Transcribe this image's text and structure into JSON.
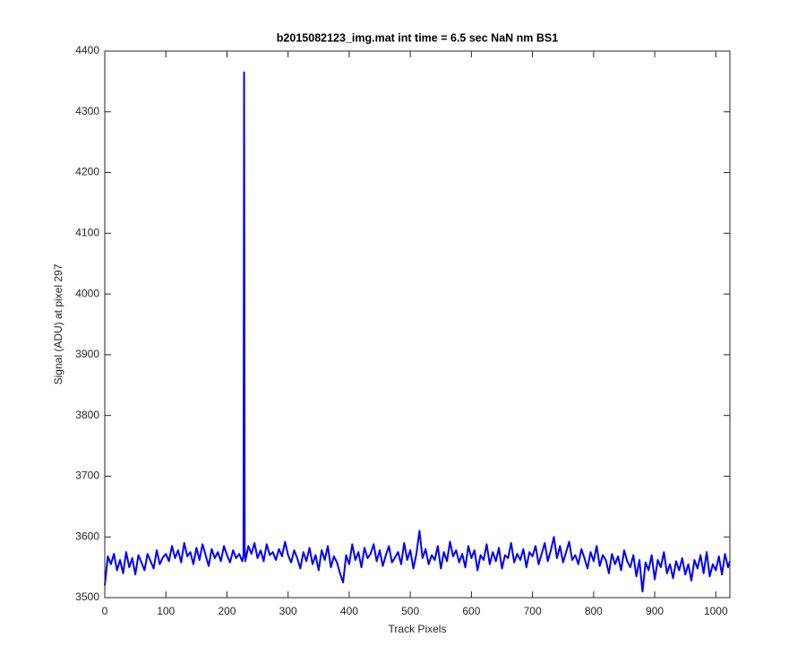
{
  "chart_data": {
    "type": "line",
    "title": "b2015082123_img.mat int time = 6.5 sec  NaN nm BS1",
    "xlabel": "Track Pixels",
    "ylabel": "Signal (ADU) at pixel 297",
    "xlim": [
      0,
      1023
    ],
    "ylim": [
      3500,
      4400
    ],
    "xticks": [
      0,
      100,
      200,
      300,
      400,
      500,
      600,
      700,
      800,
      900,
      1000
    ],
    "yticks": [
      3500,
      3600,
      3700,
      3800,
      3900,
      4000,
      4100,
      4200,
      4300,
      4400
    ],
    "grid": false,
    "x": [
      0,
      5,
      10,
      15,
      20,
      25,
      30,
      35,
      40,
      45,
      50,
      55,
      60,
      65,
      70,
      75,
      80,
      85,
      90,
      95,
      100,
      105,
      110,
      115,
      120,
      125,
      130,
      135,
      140,
      145,
      150,
      155,
      160,
      165,
      170,
      175,
      180,
      185,
      190,
      195,
      200,
      205,
      210,
      215,
      220,
      225,
      227,
      228,
      229,
      230,
      235,
      240,
      245,
      250,
      255,
      260,
      265,
      270,
      275,
      280,
      285,
      290,
      295,
      300,
      305,
      310,
      315,
      320,
      325,
      330,
      335,
      340,
      345,
      350,
      355,
      360,
      365,
      370,
      375,
      380,
      385,
      390,
      395,
      400,
      405,
      410,
      415,
      420,
      425,
      430,
      435,
      440,
      445,
      450,
      455,
      460,
      465,
      470,
      475,
      480,
      485,
      490,
      495,
      500,
      505,
      510,
      515,
      520,
      525,
      530,
      535,
      540,
      545,
      550,
      555,
      560,
      565,
      570,
      575,
      580,
      585,
      590,
      595,
      600,
      605,
      610,
      615,
      620,
      625,
      630,
      635,
      640,
      645,
      650,
      655,
      660,
      665,
      670,
      675,
      680,
      685,
      690,
      695,
      700,
      705,
      710,
      715,
      720,
      725,
      730,
      735,
      740,
      745,
      750,
      755,
      760,
      765,
      770,
      775,
      780,
      785,
      790,
      795,
      800,
      805,
      810,
      815,
      820,
      825,
      830,
      835,
      840,
      845,
      850,
      855,
      860,
      865,
      870,
      875,
      880,
      885,
      890,
      895,
      900,
      905,
      910,
      915,
      920,
      925,
      930,
      935,
      940,
      945,
      950,
      955,
      960,
      965,
      970,
      975,
      980,
      985,
      990,
      995,
      1000,
      1005,
      1010,
      1015,
      1020,
      1023
    ],
    "series": [
      {
        "name": "pixel 297",
        "color": "#0000ff",
        "values": [
          3520,
          3568,
          3555,
          3572,
          3545,
          3562,
          3540,
          3575,
          3550,
          3565,
          3538,
          3570,
          3558,
          3545,
          3572,
          3560,
          3548,
          3578,
          3555,
          3566,
          3572,
          3560,
          3585,
          3565,
          3578,
          3558,
          3590,
          3568,
          3575,
          3555,
          3582,
          3562,
          3588,
          3570,
          3552,
          3580,
          3565,
          3575,
          3560,
          3585,
          3570,
          3558,
          3578,
          3565,
          3572,
          3560,
          3570,
          4365,
          3585,
          3560,
          3585,
          3572,
          3590,
          3565,
          3578,
          3560,
          3588,
          3570,
          3575,
          3562,
          3580,
          3568,
          3592,
          3570,
          3558,
          3578,
          3565,
          3548,
          3575,
          3560,
          3582,
          3555,
          3570,
          3545,
          3578,
          3562,
          3585,
          3550,
          3568,
          3558,
          3540,
          3525,
          3570,
          3555,
          3588,
          3562,
          3575,
          3550,
          3582,
          3565,
          3572,
          3588,
          3560,
          3578,
          3552,
          3570,
          3585,
          3558,
          3566,
          3575,
          3555,
          3590,
          3562,
          3578,
          3548,
          3572,
          3610,
          3565,
          3580,
          3555,
          3570,
          3562,
          3585,
          3548,
          3575,
          3560,
          3592,
          3568,
          3578,
          3558,
          3572,
          3550,
          3585,
          3565,
          3578,
          3545,
          3570,
          3562,
          3588,
          3555,
          3575,
          3560,
          3582,
          3548,
          3570,
          3565,
          3590,
          3558,
          3572,
          3562,
          3580,
          3550,
          3575,
          3568,
          3585,
          3555,
          3572,
          3590,
          3560,
          3578,
          3600,
          3565,
          3585,
          3558,
          3575,
          3592,
          3562,
          3570,
          3555,
          3580,
          3565,
          3548,
          3575,
          3560,
          3585,
          3552,
          3570,
          3562,
          3540,
          3572,
          3555,
          3568,
          3545,
          3578,
          3560,
          3550,
          3570,
          3535,
          3562,
          3510,
          3558,
          3545,
          3570,
          3530,
          3562,
          3550,
          3575,
          3540,
          3555,
          3532,
          3560,
          3545,
          3565,
          3538,
          3555,
          3528,
          3562,
          3548,
          3570,
          3540,
          3575,
          3535,
          3555,
          3545,
          3568,
          3538,
          3572,
          3550,
          3560
        ]
      }
    ]
  }
}
